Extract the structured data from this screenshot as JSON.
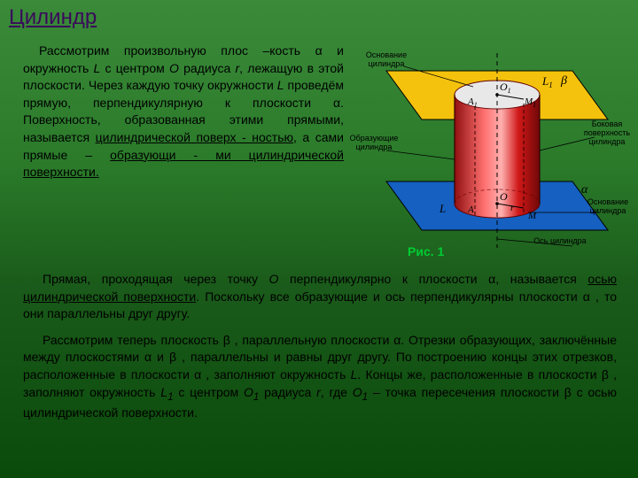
{
  "title": "Цилиндр",
  "paragraph1_html": "Рассмотрим произвольную плос –кость α и окружность <i>L</i> с центром <i>O</i> радиуса <i>r</i>, лежащую в этой плоскости. Через каждую точку окружности <i>L</i> проведём прямую, перпендикулярную к плоскости α. Поверхность, образованная этими прямыми, называется <span class='u'>цилиндрической поверх - ностью</span>, а сами прямые – <span class='u'>образующи - ми цилиндрической поверхности.</span>",
  "paragraph2_html": "Прямая, проходящая  через точку <i>O</i> перпендикулярно  к  плоскости α, называется <span class='u'>осью цилиндрической поверхности</span>. Поскольку все образующие и ось перпендикулярны плоскости α , то они параллельны друг другу.",
  "paragraph3_html": "Рассмотрим теперь плоскость β , параллельную плоскости α. Отрезки образующих, заключённые между плоскостями α и β ,  параллельны и равны друг другу. По построению концы этих отрезков, расположенные в плоскости α , заполняют окружность <i>L</i>.  Концы же, расположенные в плоскости β , заполняют окружность <i>L<sub>1</sub></i> с центром <i>O<sub>1</sub></i> радиуса <i>r</i>, где <i>O<sub>1</sub></i> – точка пересечения плоскости β с осью цилиндрической поверхности.",
  "fig_caption": "Рис. 1",
  "labels": {
    "top_base": "Основание\nцилиндра",
    "generators": "Образующие\nцилиндра",
    "lateral": "Боковая\nповерхность\nцилиндра",
    "bottom_base": "Основание\nцилиндра",
    "axis": "Ось цилиндра"
  },
  "diagram": {
    "top_plane_fill": "#f4c20c",
    "bottom_plane_fill": "#1560c0",
    "cylinder_fill": "#d01818",
    "cylinder_dark": "#901010",
    "cylinder_light": "#ff6060",
    "top_ellipse_fill": "#e8e8e8",
    "alpha": "α",
    "beta": "β",
    "L": "L",
    "L1": "L",
    "A": "A",
    "A1": "A",
    "O": "O",
    "O1": "O",
    "M": "M",
    "M1": "M",
    "r": "r",
    "sub1": "1"
  }
}
